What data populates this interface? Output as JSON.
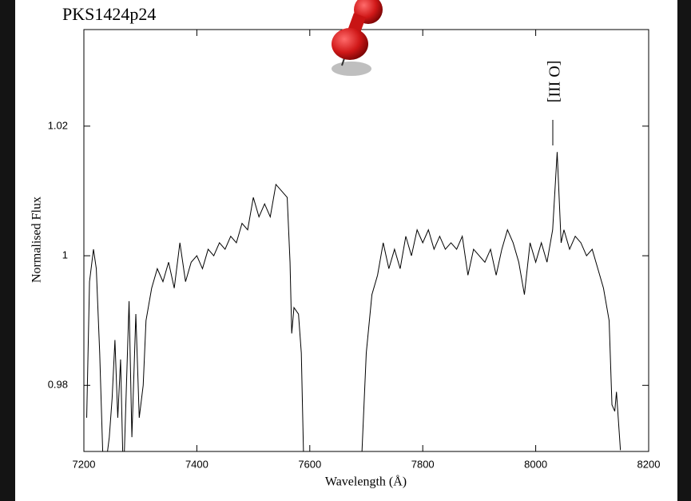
{
  "chart_data": {
    "type": "line",
    "title": "PKS1424p24",
    "xlabel": "Wavelength (Å)",
    "ylabel": "Normalised Flux",
    "annotation": "[O III]",
    "color": "#000000",
    "xlim": [
      7200,
      8200
    ],
    "xticks": [
      7200,
      7400,
      7600,
      7800,
      8000,
      8200
    ],
    "ylim": [
      0.9698,
      1.0349
    ],
    "yticks": [
      0.98,
      1,
      1.02
    ],
    "x": [
      7205,
      7210,
      7217,
      7222,
      7228,
      7235,
      7245,
      7250,
      7255,
      7260,
      7265,
      7270,
      7280,
      7285,
      7292,
      7298,
      7305,
      7310,
      7320,
      7330,
      7340,
      7350,
      7360,
      7370,
      7380,
      7390,
      7400,
      7410,
      7420,
      7430,
      7440,
      7450,
      7460,
      7470,
      7480,
      7490,
      7500,
      7510,
      7520,
      7530,
      7540,
      7550,
      7560,
      7565,
      7568,
      7572,
      7580,
      7585,
      7590,
      7690,
      7700,
      7710,
      7720,
      7730,
      7740,
      7750,
      7760,
      7770,
      7780,
      7790,
      7800,
      7810,
      7820,
      7830,
      7840,
      7850,
      7860,
      7870,
      7880,
      7890,
      7900,
      7910,
      7920,
      7930,
      7940,
      7950,
      7960,
      7970,
      7980,
      7990,
      8000,
      8010,
      8020,
      8030,
      8038,
      8045,
      8050,
      8060,
      8070,
      8080,
      8090,
      8100,
      8110,
      8120,
      8130,
      8135,
      8140,
      8143,
      8150
    ],
    "values": [
      0.975,
      0.996,
      1.001,
      0.998,
      0.985,
      0.965,
      0.972,
      0.978,
      0.987,
      0.975,
      0.984,
      0.965,
      0.993,
      0.972,
      0.991,
      0.975,
      0.98,
      0.99,
      0.995,
      0.998,
      0.996,
      0.999,
      0.995,
      1.002,
      0.996,
      0.999,
      1.0,
      0.998,
      1.001,
      1.0,
      1.002,
      1.001,
      1.003,
      1.002,
      1.005,
      1.004,
      1.009,
      1.006,
      1.008,
      1.006,
      1.011,
      1.01,
      1.009,
      0.999,
      0.988,
      0.992,
      0.991,
      0.985,
      0.965,
      0.965,
      0.985,
      0.994,
      0.997,
      1.002,
      0.998,
      1.001,
      0.998,
      1.003,
      1.0,
      1.004,
      1.002,
      1.004,
      1.001,
      1.003,
      1.001,
      1.002,
      1.001,
      1.003,
      0.997,
      1.001,
      1.0,
      0.999,
      1.001,
      0.997,
      1.001,
      1.004,
      1.002,
      0.999,
      0.994,
      1.002,
      0.999,
      1.002,
      0.999,
      1.004,
      1.016,
      1.002,
      1.004,
      1.001,
      1.003,
      1.002,
      1.0,
      1.001,
      0.998,
      0.995,
      0.99,
      0.977,
      0.976,
      0.979,
      0.97
    ]
  }
}
